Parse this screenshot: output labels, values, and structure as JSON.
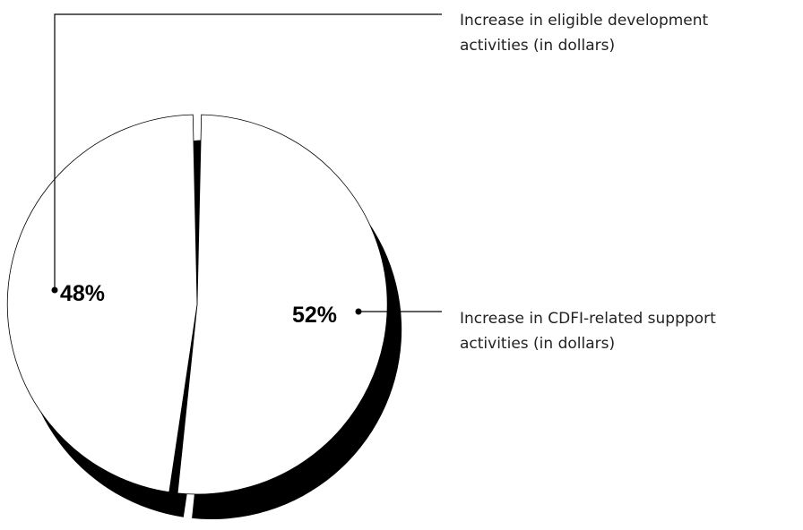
{
  "chart_data": {
    "type": "pie",
    "title": "",
    "slices": [
      {
        "label": "Increase in CDFI-related suppport activities (in dollars)",
        "label_lines": [
          "Increase in CDFI-related suppport",
          "activities (in dollars)"
        ],
        "value": 52,
        "value_label": "52%",
        "color": "#ffffff"
      },
      {
        "label": "Increase in eligible development activities (in dollars)",
        "label_lines": [
          "Increase in eligible development",
          "activities (in dollars)"
        ],
        "value": 48,
        "value_label": "48%",
        "color": "#ffffff"
      }
    ],
    "legend_placement": "right",
    "style": {
      "shadow_color": "#000000",
      "outline_color": "#000000"
    }
  }
}
